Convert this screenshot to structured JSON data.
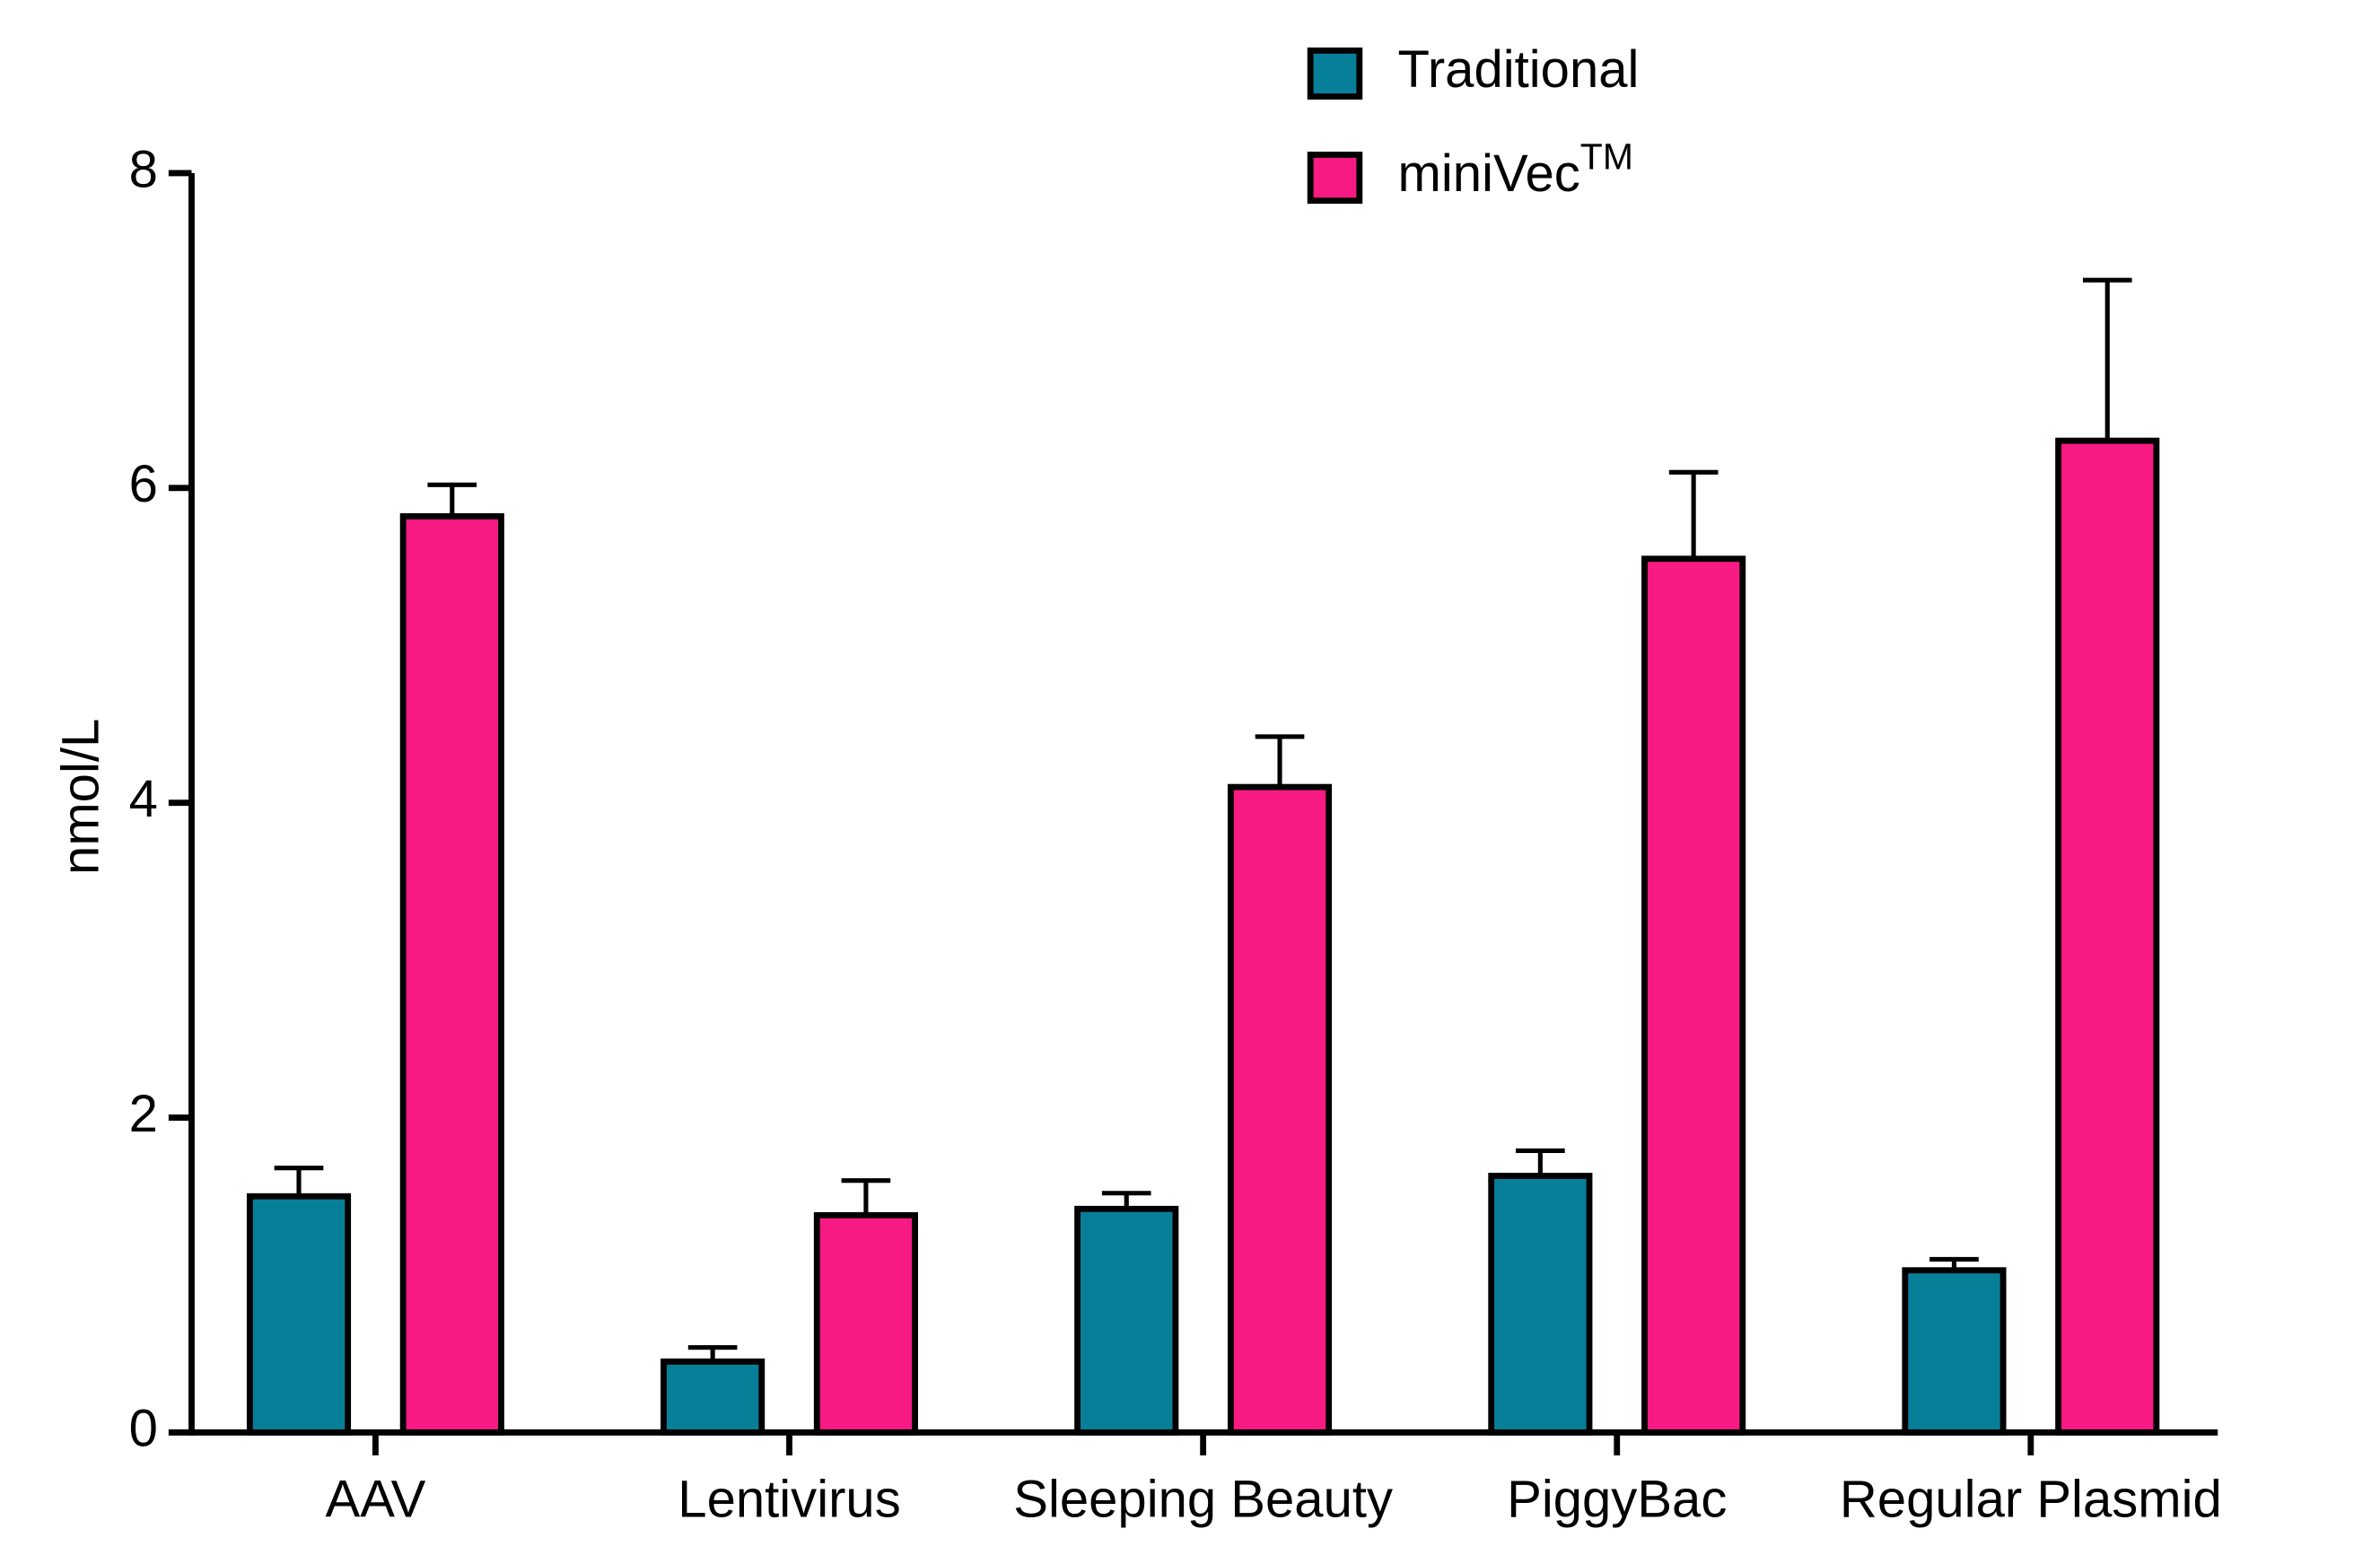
{
  "chart_data": {
    "type": "bar",
    "y_label": "nmol/L",
    "categories": [
      "AAV",
      "Lentivirus",
      "Sleeping Beauty",
      "PiggyBac",
      "Regular Plasmid"
    ],
    "series": [
      {
        "name": "Traditional",
        "color": "#087f99",
        "values": [
          1.5,
          0.45,
          1.42,
          1.63,
          1.03
        ],
        "errors": [
          0.18,
          0.09,
          0.1,
          0.16,
          0.07
        ]
      },
      {
        "name": "miniVec",
        "superscript": "TM",
        "color": "#f61a82",
        "values": [
          5.82,
          1.38,
          4.1,
          5.55,
          6.3
        ],
        "errors": [
          0.2,
          0.22,
          0.32,
          0.55,
          1.02
        ]
      }
    ],
    "ylim": [
      0,
      8
    ],
    "yticks": [
      0,
      2,
      4,
      6,
      8
    ],
    "legend": "top"
  }
}
